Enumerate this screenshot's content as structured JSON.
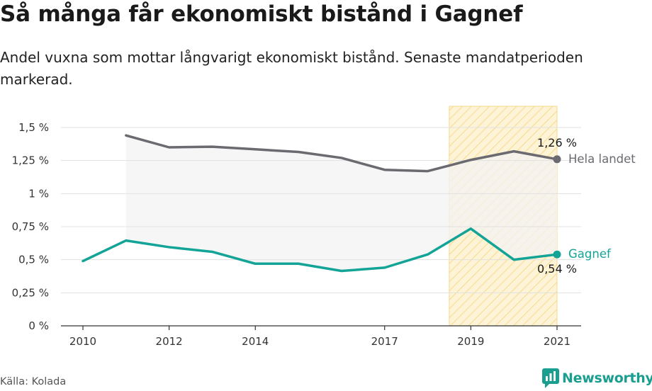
{
  "header": {
    "title": "Så många får ekonomiskt bistånd i Gagnef",
    "subtitle": "Andel vuxna som mottar långvarigt ekonomiskt bistånd. Senaste mandatperioden markerad."
  },
  "footer": {
    "source": "Källa: Kolada",
    "brand": "Newsworthy"
  },
  "chart_data": {
    "type": "line",
    "x": [
      2010,
      2011,
      2012,
      2013,
      2014,
      2015,
      2016,
      2017,
      2018,
      2019,
      2020,
      2021
    ],
    "x_tick_values": [
      2010,
      2012,
      2014,
      2017,
      2019,
      2021
    ],
    "x_tick_labels": [
      "2010",
      "2012",
      "2014",
      "2017",
      "2019",
      "2021"
    ],
    "y_tick_values": [
      0,
      0.25,
      0.5,
      0.75,
      1,
      1.25,
      1.5
    ],
    "y_tick_labels": [
      "0 %",
      "0,25 %",
      "0,5 %",
      "0,75 %",
      "1 %",
      "1,25 %",
      "1,5 %"
    ],
    "ylim": [
      0,
      1.5
    ],
    "grid": true,
    "highlight_period": [
      2018.5,
      2021
    ],
    "series": [
      {
        "name": "Hela landet",
        "color": "#6b6a70",
        "values": [
          null,
          1.44,
          1.35,
          1.355,
          1.335,
          1.315,
          1.27,
          1.18,
          1.17,
          1.255,
          1.32,
          1.26
        ],
        "end_label": "1,26 %"
      },
      {
        "name": "Gagnef",
        "color": "#13a497",
        "values": [
          0.49,
          0.645,
          0.595,
          0.56,
          0.47,
          0.47,
          0.415,
          0.44,
          0.54,
          0.735,
          0.5,
          0.54
        ],
        "end_label": "0,54 %"
      }
    ],
    "colors": {
      "highlight_fill": "#fdf3d6",
      "highlight_stroke": "#f5d98a",
      "band_fill": "#f3f3f3",
      "grid": "#e1e1e1",
      "axis": "#333333"
    }
  }
}
